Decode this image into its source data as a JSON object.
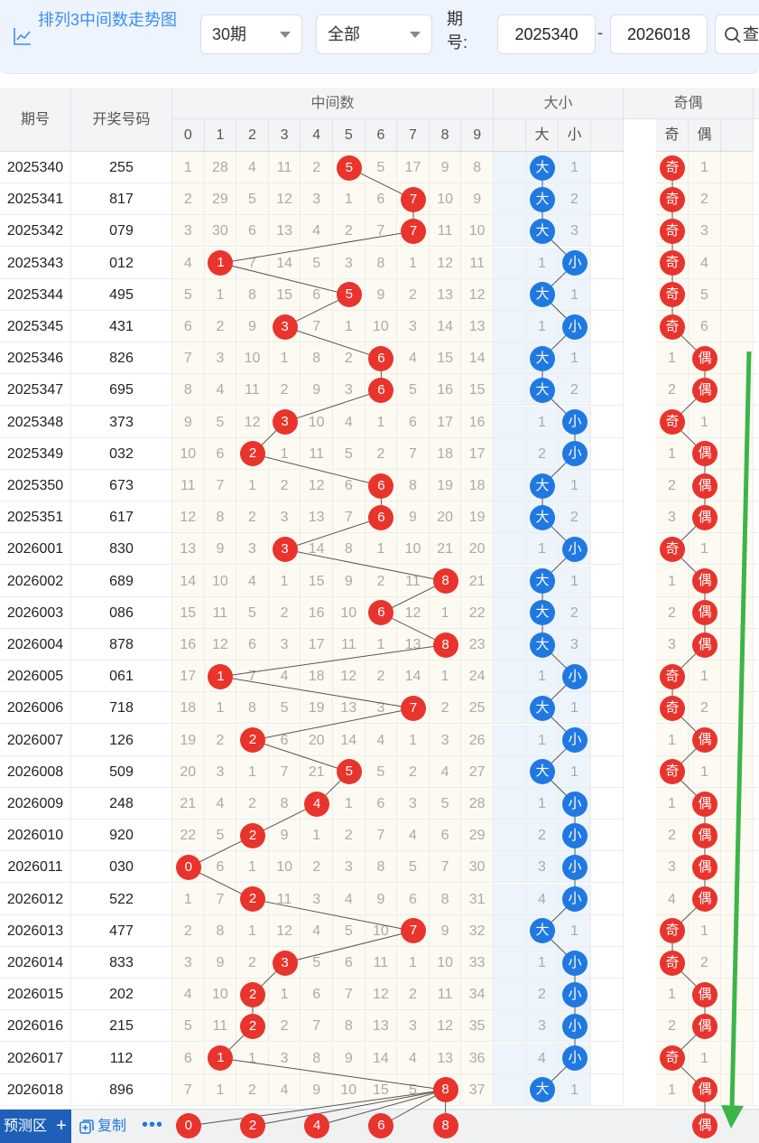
{
  "toolbar": {
    "title": "排列3中间数走势图",
    "period_count": "30期",
    "filter": "全部",
    "period_label": "期号:",
    "from": "2025340",
    "to": "2026018",
    "dash": "-",
    "search_label": "查"
  },
  "headers": {
    "issue": "期号",
    "number": "开奖号码",
    "middle": "中间数",
    "size": "大小",
    "parity": "奇偶",
    "digits": [
      "0",
      "1",
      "2",
      "3",
      "4",
      "5",
      "6",
      "7",
      "8",
      "9"
    ],
    "size_labels": [
      "大",
      "小"
    ],
    "parity_labels": [
      "奇",
      "偶"
    ]
  },
  "rows": [
    {
      "issue": "2025340",
      "number": "255",
      "mid": 5,
      "omit": [
        1,
        28,
        4,
        11,
        2,
        0,
        5,
        17,
        9,
        8
      ],
      "size": "大",
      "size_omit": 1,
      "parity": "奇",
      "parity_omit": 1
    },
    {
      "issue": "2025341",
      "number": "817",
      "mid": 7,
      "omit": [
        2,
        29,
        5,
        12,
        3,
        1,
        6,
        0,
        10,
        9
      ],
      "size": "大",
      "size_omit": 2,
      "parity": "奇",
      "parity_omit": 2
    },
    {
      "issue": "2025342",
      "number": "079",
      "mid": 7,
      "omit": [
        3,
        30,
        6,
        13,
        4,
        2,
        7,
        0,
        11,
        10
      ],
      "size": "大",
      "size_omit": 3,
      "parity": "奇",
      "parity_omit": 3
    },
    {
      "issue": "2025343",
      "number": "012",
      "mid": 1,
      "omit": [
        4,
        0,
        7,
        14,
        5,
        3,
        8,
        1,
        12,
        11
      ],
      "size": "小",
      "size_omit": 1,
      "parity": "奇",
      "parity_omit": 4
    },
    {
      "issue": "2025344",
      "number": "495",
      "mid": 5,
      "omit": [
        5,
        1,
        8,
        15,
        6,
        0,
        9,
        2,
        13,
        12
      ],
      "size": "大",
      "size_omit": 1,
      "parity": "奇",
      "parity_omit": 5
    },
    {
      "issue": "2025345",
      "number": "431",
      "mid": 3,
      "omit": [
        6,
        2,
        9,
        0,
        7,
        1,
        10,
        3,
        14,
        13
      ],
      "size": "小",
      "size_omit": 1,
      "parity": "奇",
      "parity_omit": 6
    },
    {
      "issue": "2025346",
      "number": "826",
      "mid": 6,
      "omit": [
        7,
        3,
        10,
        1,
        8,
        2,
        0,
        4,
        15,
        14
      ],
      "size": "大",
      "size_omit": 1,
      "parity": "偶",
      "parity_omit": 1
    },
    {
      "issue": "2025347",
      "number": "695",
      "mid": 6,
      "omit": [
        8,
        4,
        11,
        2,
        9,
        3,
        0,
        5,
        16,
        15
      ],
      "size": "大",
      "size_omit": 2,
      "parity": "偶",
      "parity_omit": 2
    },
    {
      "issue": "2025348",
      "number": "373",
      "mid": 3,
      "omit": [
        9,
        5,
        12,
        0,
        10,
        4,
        1,
        6,
        17,
        16
      ],
      "size": "小",
      "size_omit": 1,
      "parity": "奇",
      "parity_omit": 1
    },
    {
      "issue": "2025349",
      "number": "032",
      "mid": 2,
      "omit": [
        10,
        6,
        0,
        1,
        11,
        5,
        2,
        7,
        18,
        17
      ],
      "size": "小",
      "size_omit": 2,
      "parity": "偶",
      "parity_omit": 1
    },
    {
      "issue": "2025350",
      "number": "673",
      "mid": 6,
      "omit": [
        11,
        7,
        1,
        2,
        12,
        6,
        0,
        8,
        19,
        18
      ],
      "size": "大",
      "size_omit": 1,
      "parity": "偶",
      "parity_omit": 2
    },
    {
      "issue": "2025351",
      "number": "617",
      "mid": 6,
      "omit": [
        12,
        8,
        2,
        3,
        13,
        7,
        0,
        9,
        20,
        19
      ],
      "size": "大",
      "size_omit": 2,
      "parity": "偶",
      "parity_omit": 3
    },
    {
      "issue": "2026001",
      "number": "830",
      "mid": 3,
      "omit": [
        13,
        9,
        3,
        0,
        14,
        8,
        1,
        10,
        21,
        20
      ],
      "size": "小",
      "size_omit": 1,
      "parity": "奇",
      "parity_omit": 1
    },
    {
      "issue": "2026002",
      "number": "689",
      "mid": 8,
      "omit": [
        14,
        10,
        4,
        1,
        15,
        9,
        2,
        11,
        0,
        21
      ],
      "size": "大",
      "size_omit": 1,
      "parity": "偶",
      "parity_omit": 1
    },
    {
      "issue": "2026003",
      "number": "086",
      "mid": 6,
      "omit": [
        15,
        11,
        5,
        2,
        16,
        10,
        0,
        12,
        1,
        22
      ],
      "size": "大",
      "size_omit": 2,
      "parity": "偶",
      "parity_omit": 2
    },
    {
      "issue": "2026004",
      "number": "878",
      "mid": 8,
      "omit": [
        16,
        12,
        6,
        3,
        17,
        11,
        1,
        13,
        0,
        23
      ],
      "size": "大",
      "size_omit": 3,
      "parity": "偶",
      "parity_omit": 3
    },
    {
      "issue": "2026005",
      "number": "061",
      "mid": 1,
      "omit": [
        17,
        0,
        7,
        4,
        18,
        12,
        2,
        14,
        1,
        24
      ],
      "size": "小",
      "size_omit": 1,
      "parity": "奇",
      "parity_omit": 1
    },
    {
      "issue": "2026006",
      "number": "718",
      "mid": 7,
      "omit": [
        18,
        1,
        8,
        5,
        19,
        13,
        3,
        0,
        2,
        25
      ],
      "size": "大",
      "size_omit": 1,
      "parity": "奇",
      "parity_omit": 2
    },
    {
      "issue": "2026007",
      "number": "126",
      "mid": 2,
      "omit": [
        19,
        2,
        0,
        6,
        20,
        14,
        4,
        1,
        3,
        26
      ],
      "size": "小",
      "size_omit": 1,
      "parity": "偶",
      "parity_omit": 1
    },
    {
      "issue": "2026008",
      "number": "509",
      "mid": 5,
      "omit": [
        20,
        3,
        1,
        7,
        21,
        0,
        5,
        2,
        4,
        27
      ],
      "size": "大",
      "size_omit": 1,
      "parity": "奇",
      "parity_omit": 1
    },
    {
      "issue": "2026009",
      "number": "248",
      "mid": 4,
      "omit": [
        21,
        4,
        2,
        8,
        0,
        1,
        6,
        3,
        5,
        28
      ],
      "size": "小",
      "size_omit": 1,
      "parity": "偶",
      "parity_omit": 1
    },
    {
      "issue": "2026010",
      "number": "920",
      "mid": 2,
      "omit": [
        22,
        5,
        0,
        9,
        1,
        2,
        7,
        4,
        6,
        29
      ],
      "size": "小",
      "size_omit": 2,
      "parity": "偶",
      "parity_omit": 2
    },
    {
      "issue": "2026011",
      "number": "030",
      "mid": 0,
      "omit": [
        0,
        6,
        1,
        10,
        2,
        3,
        8,
        5,
        7,
        30
      ],
      "size": "小",
      "size_omit": 3,
      "parity": "偶",
      "parity_omit": 3
    },
    {
      "issue": "2026012",
      "number": "522",
      "mid": 2,
      "omit": [
        1,
        7,
        0,
        11,
        3,
        4,
        9,
        6,
        8,
        31
      ],
      "size": "小",
      "size_omit": 4,
      "parity": "偶",
      "parity_omit": 4
    },
    {
      "issue": "2026013",
      "number": "477",
      "mid": 7,
      "omit": [
        2,
        8,
        1,
        12,
        4,
        5,
        10,
        0,
        9,
        32
      ],
      "size": "大",
      "size_omit": 1,
      "parity": "奇",
      "parity_omit": 1
    },
    {
      "issue": "2026014",
      "number": "833",
      "mid": 3,
      "omit": [
        3,
        9,
        2,
        0,
        5,
        6,
        11,
        1,
        10,
        33
      ],
      "size": "小",
      "size_omit": 1,
      "parity": "奇",
      "parity_omit": 2
    },
    {
      "issue": "2026015",
      "number": "202",
      "mid": 2,
      "omit": [
        4,
        10,
        0,
        1,
        6,
        7,
        12,
        2,
        11,
        34
      ],
      "size": "小",
      "size_omit": 2,
      "parity": "偶",
      "parity_omit": 1
    },
    {
      "issue": "2026016",
      "number": "215",
      "mid": 2,
      "omit": [
        5,
        11,
        0,
        2,
        7,
        8,
        13,
        3,
        12,
        35
      ],
      "size": "小",
      "size_omit": 3,
      "parity": "偶",
      "parity_omit": 2
    },
    {
      "issue": "2026017",
      "number": "112",
      "mid": 1,
      "omit": [
        6,
        0,
        1,
        3,
        8,
        9,
        14,
        4,
        13,
        36
      ],
      "size": "小",
      "size_omit": 4,
      "parity": "奇",
      "parity_omit": 1
    },
    {
      "issue": "2026018",
      "number": "896",
      "mid": 8,
      "omit": [
        7,
        1,
        2,
        4,
        9,
        10,
        15,
        5,
        0,
        37
      ],
      "size": "大",
      "size_omit": 1,
      "parity": "偶",
      "parity_omit": 1
    }
  ],
  "prediction": {
    "label": "预测区",
    "plus": "+",
    "copy": "复制",
    "more": "•••",
    "digits": [
      0,
      2,
      4,
      6,
      8
    ],
    "parity": "偶"
  },
  "colors": {
    "red": "#e8342c",
    "blue": "#2079e0",
    "arrow": "#3bb54a"
  }
}
